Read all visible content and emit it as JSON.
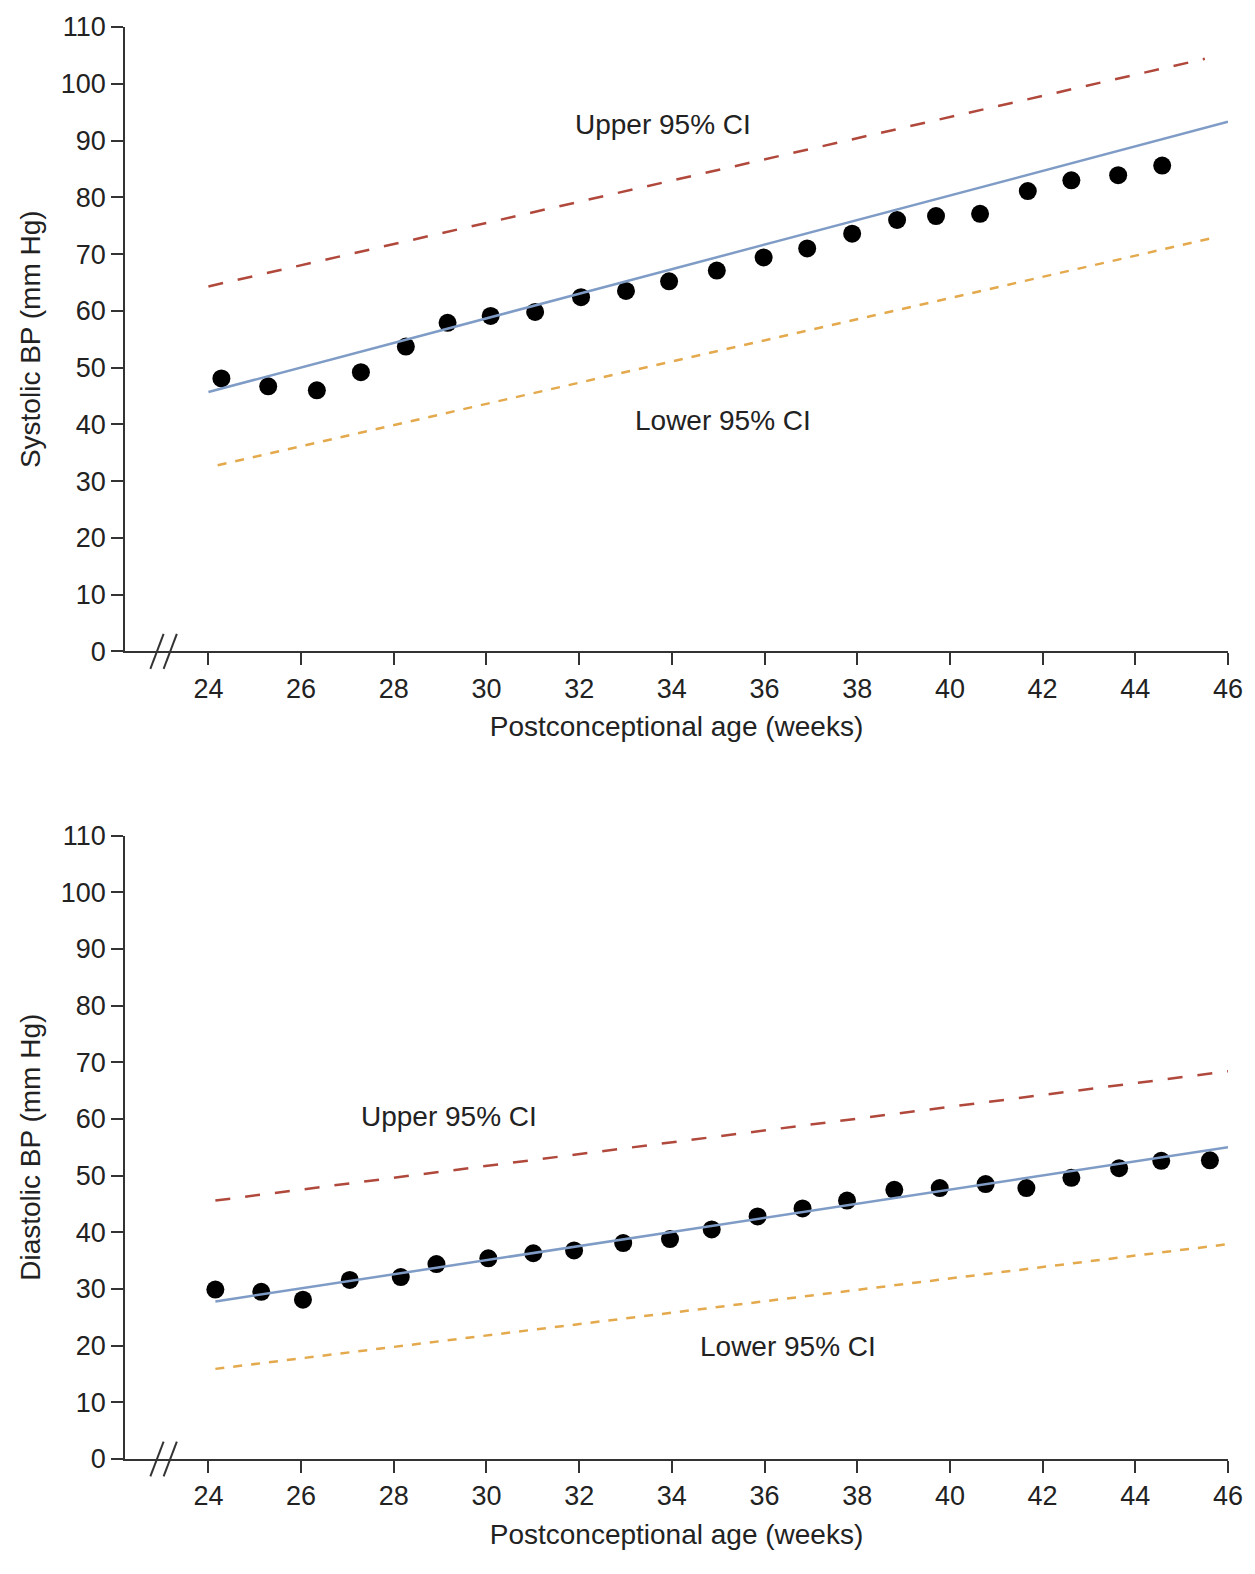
{
  "chart_data": [
    {
      "type": "scatter",
      "xlabel": "Postconceptional age (weeks)",
      "ylabel": "Systolic BP (mm Hg)",
      "xlim": [
        22.2,
        46
      ],
      "xticks": [
        24,
        26,
        28,
        30,
        32,
        34,
        36,
        38,
        40,
        42,
        44,
        46
      ],
      "ylim": [
        0,
        110
      ],
      "yticks": [
        0,
        10,
        20,
        30,
        40,
        50,
        60,
        70,
        80,
        90,
        100,
        110
      ],
      "grid": false,
      "series": [
        {
          "type": "scatter",
          "color": "#000000",
          "marker": "circle",
          "x": [
            24.28,
            25.29,
            26.34,
            27.29,
            28.26,
            29.16,
            30.09,
            31.05,
            32.04,
            33.01,
            33.94,
            34.97,
            35.98,
            36.92,
            37.89,
            38.86,
            39.7,
            40.65,
            41.68,
            42.62,
            43.63,
            44.58
          ],
          "values": [
            48.1,
            46.7,
            46.0,
            49.2,
            53.7,
            57.9,
            59.1,
            59.8,
            62.4,
            63.5,
            65.2,
            67.1,
            69.4,
            71.0,
            73.6,
            76.0,
            76.7,
            77.1,
            81.1,
            83.0,
            83.9,
            85.6
          ]
        },
        {
          "type": "line",
          "color": "#7f9cc6",
          "line_style": "solid",
          "x": [
            24,
            46
          ],
          "values": [
            45.7,
            93.3
          ]
        },
        {
          "type": "line",
          "color": "#b0483c",
          "line_style": "longdash",
          "x": [
            24,
            45.5
          ],
          "values": [
            64.3,
            104.4
          ]
        },
        {
          "type": "line",
          "color": "#e3a94c",
          "line_style": "dash",
          "x": [
            24.2,
            45.6
          ],
          "values": [
            32.8,
            72.7
          ]
        }
      ],
      "annotations": [
        {
          "text": "Upper 95% CI",
          "x": 33.8,
          "y": 92.9
        },
        {
          "text": "Lower 95% CI",
          "x": 35.1,
          "y": 40.6
        }
      ]
    },
    {
      "type": "scatter",
      "xlabel": "Postconceptional age (weeks)",
      "ylabel": "Diastolic BP (mm Hg)",
      "xlim": [
        22.2,
        46
      ],
      "xticks": [
        24,
        26,
        28,
        30,
        32,
        34,
        36,
        38,
        40,
        42,
        44,
        46
      ],
      "ylim": [
        0,
        110
      ],
      "yticks": [
        0,
        10,
        20,
        30,
        40,
        50,
        60,
        70,
        80,
        90,
        100,
        110
      ],
      "grid": false,
      "series": [
        {
          "type": "scatter",
          "color": "#000000",
          "marker": "circle",
          "x": [
            24.15,
            25.14,
            26.04,
            27.05,
            28.15,
            28.92,
            30.04,
            31.01,
            31.89,
            32.95,
            33.96,
            34.86,
            35.85,
            36.82,
            37.78,
            38.8,
            39.78,
            40.77,
            41.65,
            42.62,
            43.65,
            44.56,
            45.61
          ],
          "values": [
            29.9,
            29.5,
            28.1,
            31.6,
            32.1,
            34.4,
            35.4,
            36.3,
            36.8,
            38.1,
            38.8,
            40.5,
            42.8,
            44.2,
            45.6,
            47.5,
            47.8,
            48.5,
            47.8,
            49.6,
            51.3,
            52.6,
            52.7
          ]
        },
        {
          "type": "line",
          "color": "#7f9cc6",
          "line_style": "solid",
          "x": [
            24.15,
            46
          ],
          "values": [
            27.8,
            55.0
          ]
        },
        {
          "type": "line",
          "color": "#b0483c",
          "line_style": "longdash",
          "x": [
            24.15,
            46
          ],
          "values": [
            45.6,
            68.4
          ]
        },
        {
          "type": "line",
          "color": "#e3a94c",
          "line_style": "dash",
          "x": [
            24.15,
            46
          ],
          "values": [
            15.9,
            37.9
          ]
        }
      ],
      "annotations": [
        {
          "text": "Upper 95% CI",
          "x": 29.2,
          "y": 60.4
        },
        {
          "text": "Lower 95% CI",
          "x": 36.5,
          "y": 19.9
        }
      ]
    }
  ]
}
